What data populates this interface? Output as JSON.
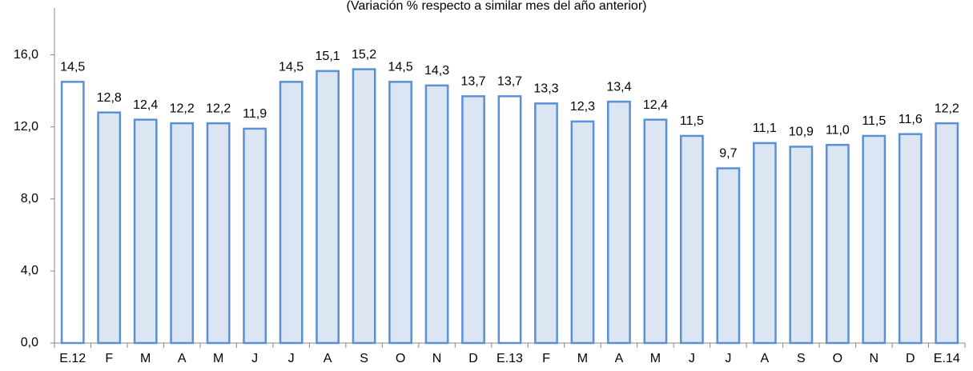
{
  "chart_data": {
    "type": "bar",
    "subtitle": "(Variación % respecto a similar mes del año anterior)",
    "categories": [
      "E.12",
      "F",
      "M",
      "A",
      "M",
      "J",
      "J",
      "A",
      "S",
      "O",
      "N",
      "D",
      "E.13",
      "F",
      "M",
      "A",
      "M",
      "J",
      "J",
      "A",
      "S",
      "O",
      "N",
      "D",
      "E.14"
    ],
    "values": [
      14.5,
      12.8,
      12.4,
      12.2,
      12.2,
      11.9,
      14.5,
      15.1,
      15.2,
      14.5,
      14.3,
      13.7,
      13.7,
      13.3,
      12.3,
      13.4,
      12.4,
      11.5,
      9.7,
      11.1,
      10.9,
      11.0,
      11.5,
      11.6,
      12.2
    ],
    "value_labels": [
      "14,5",
      "12,8",
      "12,4",
      "12,2",
      "12,2",
      "11,9",
      "14,5",
      "15,1",
      "15,2",
      "14,5",
      "14,3",
      "13,7",
      "13,7",
      "13,3",
      "12,3",
      "13,4",
      "12,4",
      "11,5",
      "9,7",
      "11,1",
      "10,9",
      "11,0",
      "11,5",
      "11,6",
      "12,2"
    ],
    "colors": [
      "#ffffff",
      "#dce6f2",
      "#dce6f2",
      "#dce6f2",
      "#dce6f2",
      "#dce6f2",
      "#dce6f2",
      "#dce6f2",
      "#dce6f2",
      "#dce6f2",
      "#dce6f2",
      "#dce6f2",
      "#ffffff",
      "#dce6f2",
      "#dce6f2",
      "#dce6f2",
      "#dce6f2",
      "#dce6f2",
      "#dce6f2",
      "#dce6f2",
      "#dce6f2",
      "#dce6f2",
      "#dce6f2",
      "#dce6f2",
      "#dce6f2"
    ],
    "edge_color": "#5b8fd6",
    "ylim": [
      0,
      18.6
    ],
    "yticks": [
      {
        "value": 0,
        "label": "0,0"
      },
      {
        "value": 4,
        "label": "4,0"
      },
      {
        "value": 8,
        "label": "8,0"
      },
      {
        "value": 12,
        "label": "12,0"
      },
      {
        "value": 16,
        "label": "16,0"
      }
    ],
    "grid": false
  }
}
